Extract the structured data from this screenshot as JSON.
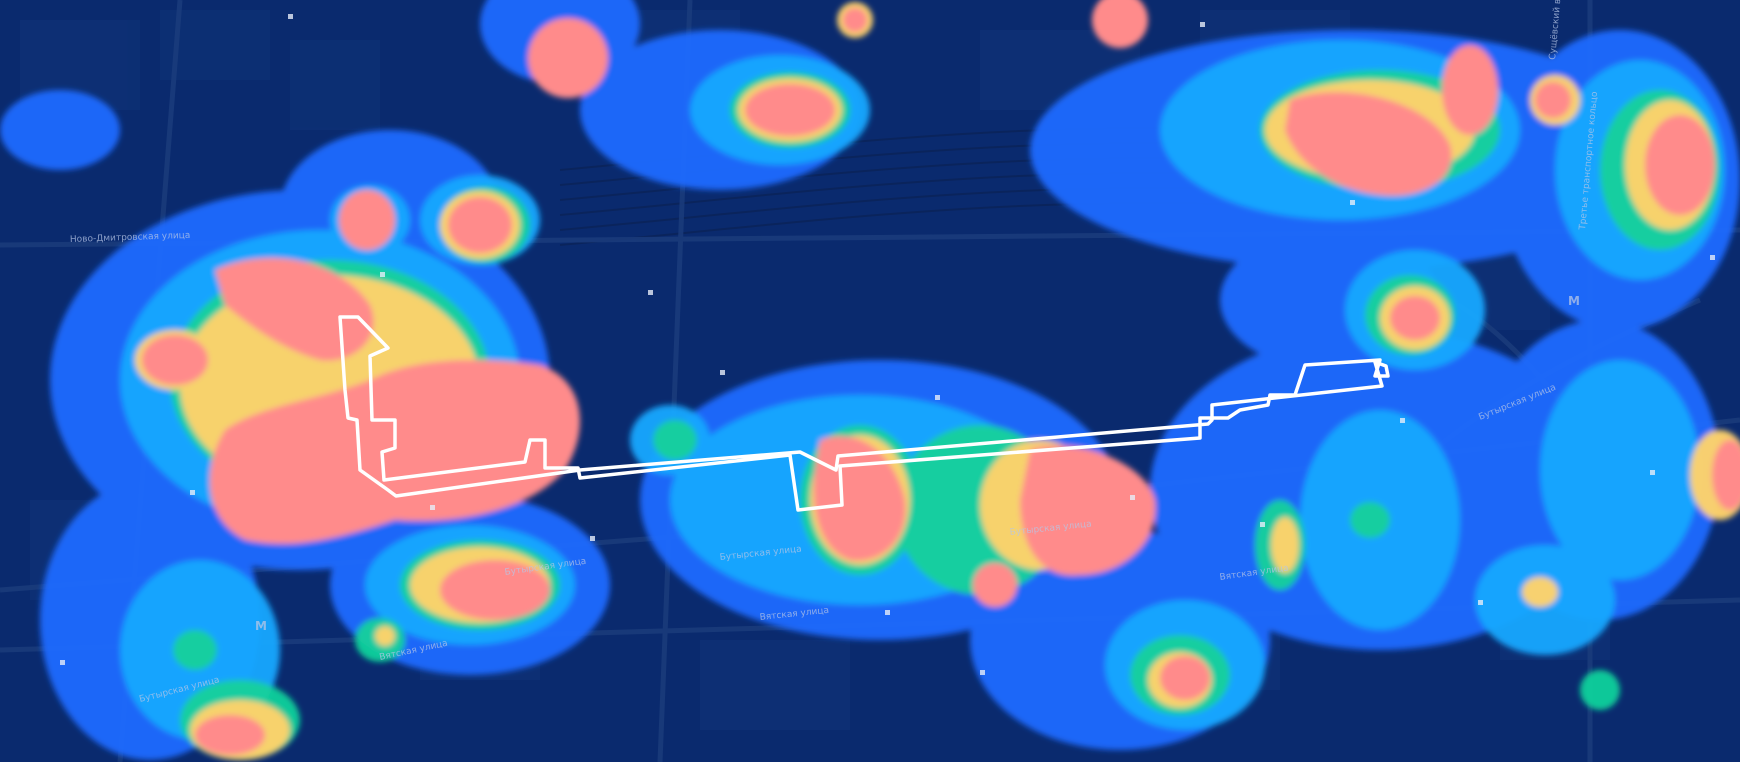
{
  "map": {
    "colors": {
      "background": "#0a2a6e",
      "blocks": "#0e3478",
      "roads": "#142f63",
      "railway": "#0c2660",
      "heat_low": "#1f73ff",
      "heat_mid_low": "#19b4ff",
      "heat_mid": "#13d39a",
      "heat_high": "#ffd86b",
      "heat_peak": "#ff8a8a",
      "route": "#ffffff"
    },
    "layers": [
      "street-map",
      "heatmap",
      "route-outline"
    ],
    "labels": {
      "butyrskaya_1": "Бутырская улица",
      "butyrskaya_2": "Бутырская улица",
      "butyrskaya_3": "Бутырская улица",
      "butyrskaya_4": "Бутырская улица",
      "vyatskaya_1": "Вятская улица",
      "vyatskaya_2": "Вятская улица",
      "vyatskaya_3": "Вятская улица",
      "savelovsky": "Бутырская улица",
      "novodmitrovskaya": "Ново-Дмитровская улица",
      "third_ring": "Третье транспортное кольцо",
      "sushchevsky": "Сущёвский вал",
      "metro_a": "М",
      "metro_b": "М"
    }
  }
}
